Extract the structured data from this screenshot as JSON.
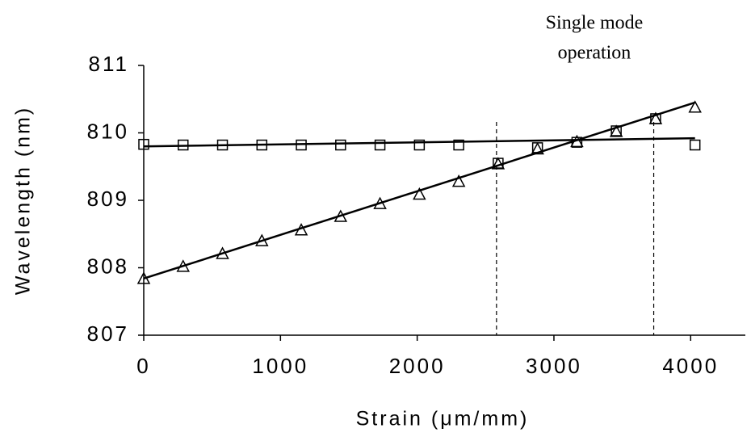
{
  "chart_data": {
    "type": "line",
    "annotation": [
      "Single mode",
      "operation"
    ],
    "x_label": "Strain (μm/mm)",
    "y_label": "Wavelength (nm)",
    "xlim": [
      0,
      4400
    ],
    "xticks": [
      0,
      1000,
      2000,
      3000,
      4000
    ],
    "ylim": [
      807,
      811
    ],
    "yticks": [
      807,
      808,
      809,
      810,
      811
    ],
    "x": [
      0,
      288,
      576,
      864,
      1152,
      1440,
      1728,
      2016,
      2304,
      2592,
      2880,
      3168,
      3456,
      3744,
      4032
    ],
    "series": [
      {
        "marker": "square",
        "color": "#000000",
        "values": [
          809.83,
          809.82,
          809.82,
          809.82,
          809.82,
          809.82,
          809.82,
          809.82,
          809.82,
          809.55,
          809.78,
          809.86,
          810.03,
          810.21,
          809.82
        ]
      },
      {
        "marker": "triangle",
        "color": "#000000",
        "values": [
          807.84,
          808.02,
          808.21,
          808.4,
          808.56,
          808.76,
          808.95,
          809.09,
          809.28,
          809.54,
          809.76,
          809.87,
          810.02,
          810.21,
          810.38
        ]
      }
    ],
    "fits": [
      {
        "x": [
          0,
          4032
        ],
        "values": [
          809.8,
          809.92
        ]
      },
      {
        "x": [
          0,
          4032
        ],
        "values": [
          807.84,
          810.45
        ]
      }
    ],
    "vlines": [
      2580,
      3730
    ]
  }
}
